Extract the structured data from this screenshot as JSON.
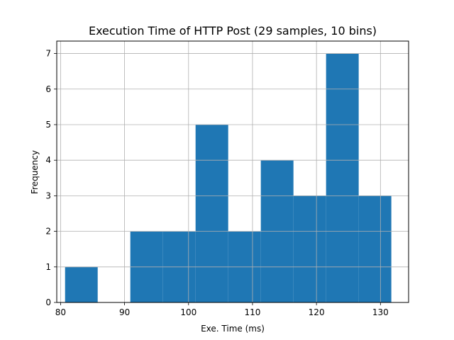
{
  "chart_data": {
    "type": "bar",
    "title": "Execution Time of HTTP Post (29 samples, 10 bins)",
    "xlabel": "Exe. Time (ms)",
    "ylabel": "Frequency",
    "xlim": [
      79.4,
      134.4
    ],
    "ylim": [
      0,
      7.35
    ],
    "x_ticks": [
      80,
      90,
      100,
      110,
      120,
      130
    ],
    "y_ticks": [
      0,
      1,
      2,
      3,
      4,
      5,
      6,
      7
    ],
    "grid": true,
    "bar_color": "#1f77b4",
    "bins": [
      {
        "start": 80.7,
        "end": 85.8,
        "count": 1
      },
      {
        "start": 85.8,
        "end": 90.9,
        "count": 0
      },
      {
        "start": 90.9,
        "end": 96.0,
        "count": 2
      },
      {
        "start": 96.0,
        "end": 101.1,
        "count": 2
      },
      {
        "start": 101.1,
        "end": 106.2,
        "count": 5
      },
      {
        "start": 106.2,
        "end": 111.3,
        "count": 2
      },
      {
        "start": 111.3,
        "end": 116.4,
        "count": 4
      },
      {
        "start": 116.4,
        "end": 121.5,
        "count": 3
      },
      {
        "start": 121.5,
        "end": 126.6,
        "count": 7
      },
      {
        "start": 126.6,
        "end": 131.7,
        "count": 3
      }
    ]
  }
}
